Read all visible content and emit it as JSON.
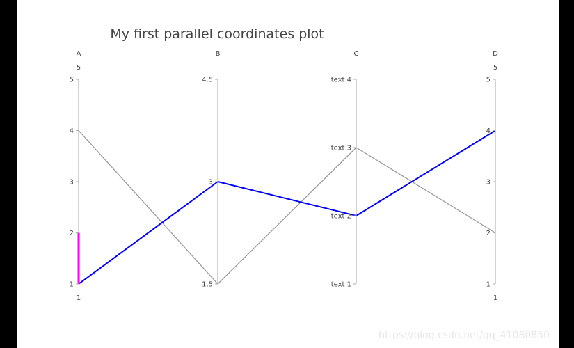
{
  "page": {
    "watermark": "https://blog.csdn.net/qq_41080850"
  },
  "chart_data": {
    "type": "parcoords",
    "title": "My first parallel coordinates plot",
    "dimensions": [
      {
        "label": "A",
        "range": [
          1,
          5
        ],
        "range_labels": {
          "min": "1",
          "max": "5"
        },
        "ticks": [
          {
            "value": 1,
            "label": "1"
          },
          {
            "value": 2,
            "label": "2"
          },
          {
            "value": 3,
            "label": "3"
          },
          {
            "value": 4,
            "label": "4"
          },
          {
            "value": 5,
            "label": "5"
          }
        ],
        "constraint_range": [
          1,
          2
        ]
      },
      {
        "label": "B",
        "range": [
          1.5,
          4.5
        ],
        "range_labels": {
          "min": "",
          "max": ""
        },
        "ticks": [
          {
            "value": 1.5,
            "label": "1.5"
          },
          {
            "value": 3,
            "label": "3"
          },
          {
            "value": 4.5,
            "label": "4.5"
          }
        ],
        "constraint_range": null
      },
      {
        "label": "C",
        "range": [
          1,
          4
        ],
        "range_labels": {
          "min": "",
          "max": ""
        },
        "ticks": [
          {
            "value": 1,
            "label": "text 1"
          },
          {
            "value": 2,
            "label": "text 2"
          },
          {
            "value": 3,
            "label": "text 3"
          },
          {
            "value": 4,
            "label": "text 4"
          }
        ],
        "constraint_range": null
      },
      {
        "label": "D",
        "range": [
          1,
          5
        ],
        "range_labels": {
          "min": "1",
          "max": "5"
        },
        "ticks": [
          {
            "value": 1,
            "label": "1"
          },
          {
            "value": 2,
            "label": "2"
          },
          {
            "value": 3,
            "label": "3"
          },
          {
            "value": 4,
            "label": "4"
          },
          {
            "value": 5,
            "label": "5"
          }
        ],
        "constraint_range": null
      }
    ],
    "lines": [
      {
        "values": [
          1,
          3,
          2,
          4
        ],
        "color": "#0000ff",
        "selected": true
      },
      {
        "values": [
          4,
          1.5,
          3,
          2
        ],
        "color": "#999999",
        "selected": false
      }
    ],
    "constraint_color": "#ff00ff",
    "axis_color": "#aaaaaa"
  }
}
